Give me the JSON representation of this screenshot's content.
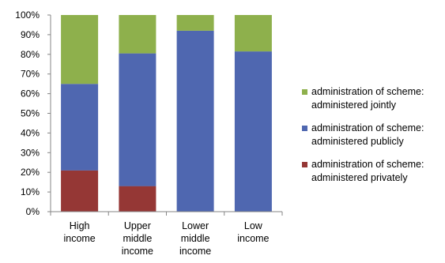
{
  "chart_data": {
    "type": "bar",
    "stacked": true,
    "categories": [
      [
        "High",
        "income"
      ],
      [
        "Upper",
        "middle",
        "income"
      ],
      [
        "Lower",
        "middle",
        "income"
      ],
      [
        "Low",
        "income"
      ]
    ],
    "ylim": [
      0,
      100
    ],
    "yticks": [
      {
        "value": 0,
        "label": "0%"
      },
      {
        "value": 10,
        "label": "10%"
      },
      {
        "value": 20,
        "label": "20%"
      },
      {
        "value": 30,
        "label": "30%"
      },
      {
        "value": 40,
        "label": "40%"
      },
      {
        "value": 50,
        "label": "50%"
      },
      {
        "value": 60,
        "label": "60%"
      },
      {
        "value": 70,
        "label": "70%"
      },
      {
        "value": 80,
        "label": "80%"
      },
      {
        "value": 90,
        "label": "90%"
      },
      {
        "value": 100,
        "label": "100%"
      }
    ],
    "grid": false,
    "legend_position": "right",
    "series": [
      {
        "name": "administration of scheme: administered privately",
        "name_lines": [
          "administration of scheme:",
          "administered privately"
        ],
        "color": "#953735",
        "values": [
          21,
          13,
          0,
          0
        ]
      },
      {
        "name": "administration of scheme: administered publicly",
        "name_lines": [
          "administration of scheme:",
          "administered publicly"
        ],
        "color": "#4f67b0",
        "values": [
          44,
          67.5,
          92,
          81.5
        ]
      },
      {
        "name": "administration of scheme: administered jointly",
        "name_lines": [
          "administration of scheme:",
          "administered jointly"
        ],
        "color": "#8eb04c",
        "values": [
          35,
          19.5,
          8,
          18.5
        ]
      }
    ],
    "legend_order": [
      2,
      1,
      0
    ]
  }
}
